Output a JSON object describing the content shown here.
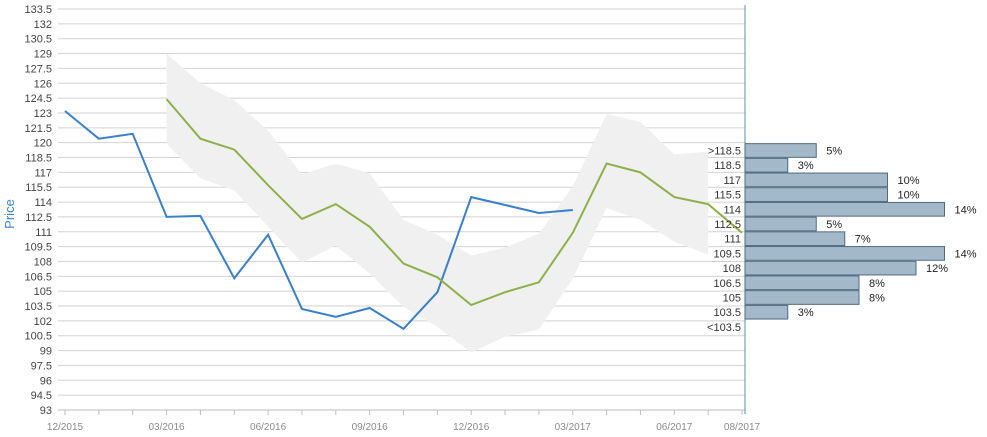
{
  "chart_data": {
    "type": "line",
    "ylabel": "Price",
    "ylim": [
      93,
      133.5
    ],
    "y_ticks": [
      "133.5",
      "132",
      "130.5",
      "129",
      "127.5",
      "126",
      "124.5",
      "123",
      "121.5",
      "120",
      "118.5",
      "117",
      "115.5",
      "114",
      "112.5",
      "111",
      "109.5",
      "108",
      "106.5",
      "105",
      "103.5",
      "102",
      "100.5",
      "99",
      "97.5",
      "96",
      "94.5",
      "93"
    ],
    "x_ticks": [
      "12/2015",
      "03/2016",
      "06/2016",
      "09/2016",
      "12/2016",
      "03/2017",
      "06/2017",
      "08/2017"
    ],
    "grid": true,
    "series": [
      {
        "role": "historical",
        "color": "#3a7fcc",
        "points": [
          [
            "12/2015",
            123.2
          ],
          [
            "01/2016",
            120.4
          ],
          [
            "02/2016",
            120.9
          ],
          [
            "03/2016",
            112.5
          ],
          [
            "04/2016",
            112.6
          ],
          [
            "05/2016",
            106.3
          ],
          [
            "06/2016",
            110.7
          ],
          [
            "07/2016",
            103.2
          ],
          [
            "08/2016",
            102.4
          ],
          [
            "09/2016",
            103.3
          ],
          [
            "10/2016",
            101.2
          ],
          [
            "11/2016",
            104.9
          ],
          [
            "12/2016",
            114.5
          ],
          [
            "01/2017",
            113.7
          ],
          [
            "02/2017",
            112.9
          ],
          [
            "03/2017",
            113.2
          ]
        ]
      },
      {
        "role": "mean estimate",
        "color": "#8db04a",
        "points": [
          [
            "03/2016",
            124.4
          ],
          [
            "04/2016",
            120.4
          ],
          [
            "05/2016",
            119.3
          ],
          [
            "06/2016",
            115.7
          ],
          [
            "07/2016",
            112.3
          ],
          [
            "08/2016",
            113.8
          ],
          [
            "09/2016",
            111.5
          ],
          [
            "10/2016",
            107.8
          ],
          [
            "11/2016",
            106.4
          ],
          [
            "12/2016",
            103.6
          ],
          [
            "01/2017",
            104.9
          ],
          [
            "02/2017",
            105.9
          ],
          [
            "03/2017",
            110.9
          ],
          [
            "04/2017",
            117.9
          ],
          [
            "05/2017",
            117.0
          ],
          [
            "06/2017",
            114.5
          ],
          [
            "07/2017",
            113.8
          ],
          [
            "08/2017",
            110.9
          ]
        ]
      }
    ],
    "range_band": {
      "color": "#f0f0f0",
      "points": [
        [
          "03/2016",
          119.9,
          129.0
        ],
        [
          "04/2016",
          116.4,
          126.0
        ],
        [
          "05/2016",
          115.2,
          124.3
        ],
        [
          "06/2016",
          111.5,
          121.2
        ],
        [
          "07/2016",
          107.9,
          116.8
        ],
        [
          "08/2016",
          109.6,
          117.9
        ],
        [
          "09/2016",
          106.8,
          116.9
        ],
        [
          "10/2016",
          103.4,
          112.2
        ],
        [
          "11/2016",
          101.4,
          110.7
        ],
        [
          "12/2016",
          98.8,
          108.6
        ],
        [
          "01/2017",
          100.4,
          109.4
        ],
        [
          "02/2017",
          101.1,
          110.8
        ],
        [
          "03/2017",
          106.3,
          115.6
        ],
        [
          "04/2017",
          113.4,
          122.9
        ],
        [
          "05/2017",
          112.2,
          122.1
        ],
        [
          "06/2017",
          110.0,
          118.8
        ],
        [
          "07/2017",
          108.7,
          119.1
        ]
      ]
    },
    "histogram": {
      "color": "#a3b9c9",
      "bins": [
        {
          "label": ">118.5",
          "pct": "5%",
          "value": 5
        },
        {
          "label": "118.5",
          "pct": "3%",
          "value": 3
        },
        {
          "label": "117",
          "pct": "10%",
          "value": 10
        },
        {
          "label": "115.5",
          "pct": "10%",
          "value": 10
        },
        {
          "label": "114",
          "pct": "14%",
          "value": 14
        },
        {
          "label": "112.5",
          "pct": "5%",
          "value": 5
        },
        {
          "label": "111",
          "pct": "7%",
          "value": 7
        },
        {
          "label": "109.5",
          "pct": "14%",
          "value": 14
        },
        {
          "label": "108",
          "pct": "12%",
          "value": 12
        },
        {
          "label": "106.5",
          "pct": "8%",
          "value": 8
        },
        {
          "label": "105",
          "pct": "8%",
          "value": 8
        },
        {
          "label": "103.5",
          "pct": "3%",
          "value": 3
        },
        {
          "label": "<103.5",
          "pct": "",
          "value": 0
        }
      ]
    }
  }
}
